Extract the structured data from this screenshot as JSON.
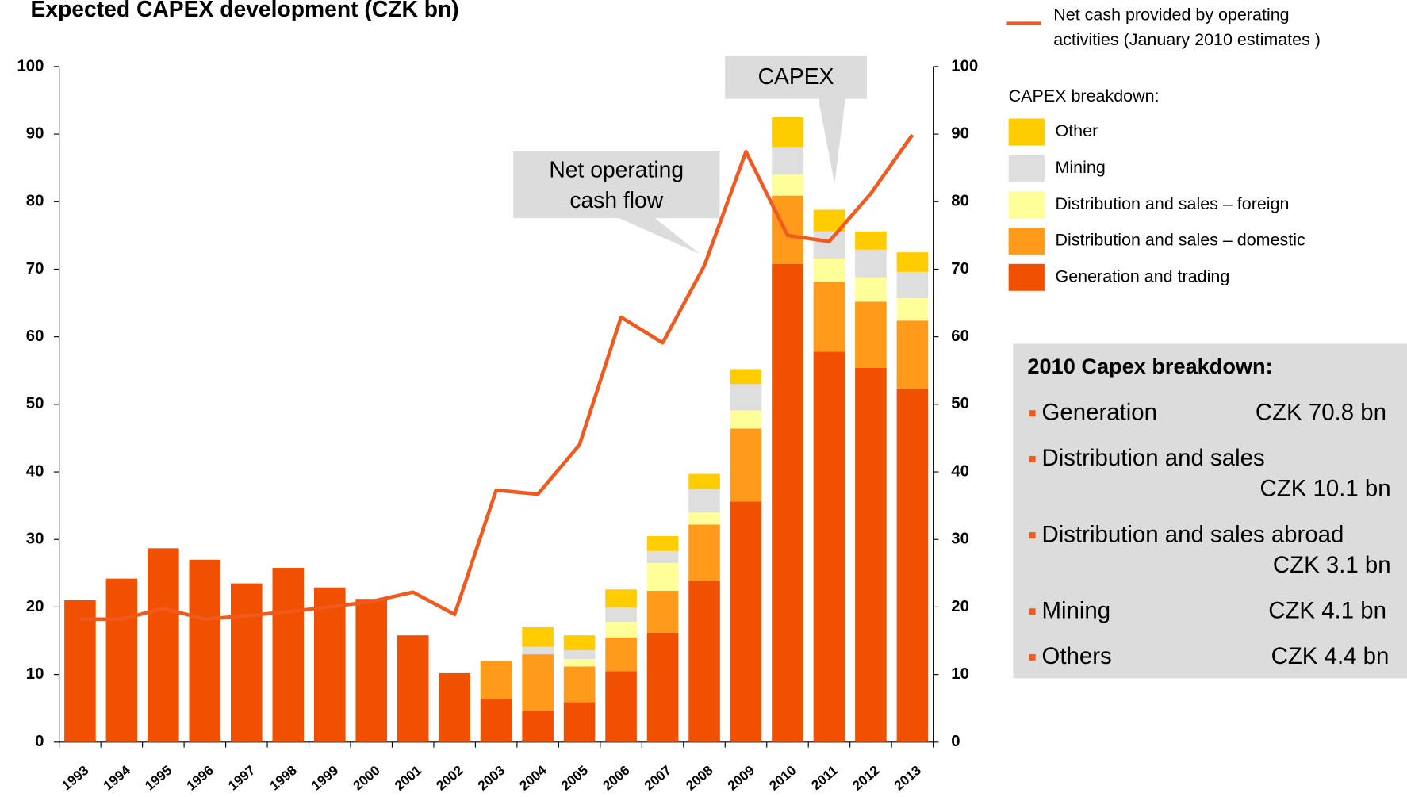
{
  "chart_data": {
    "type": "bar",
    "title": "Expected CAPEX development (CZK bn)",
    "categories": [
      "1993",
      "1994",
      "1995",
      "1996",
      "1997",
      "1998",
      "1999",
      "2000",
      "2001",
      "2002",
      "2003",
      "2004",
      "2005",
      "2006",
      "2007",
      "2008",
      "2009",
      "2010",
      "2011",
      "2012",
      "2013"
    ],
    "stacked": true,
    "series": [
      {
        "name": "Generation and trading",
        "color": "#f05000",
        "values": [
          21,
          24.2,
          28.7,
          27,
          23.5,
          25.8,
          22.9,
          21.2,
          15.8,
          10.2,
          6.4,
          4.7,
          5.9,
          10.5,
          16.2,
          23.9,
          35.6,
          70.8,
          57.8,
          55.4,
          52.3
        ]
      },
      {
        "name": "Distribution and sales  – domestic",
        "color": "#ff9a1a",
        "values": [
          0,
          0,
          0,
          0,
          0,
          0,
          0,
          0,
          0,
          0,
          5.6,
          8.3,
          5.3,
          5,
          6.2,
          8.3,
          10.8,
          10.1,
          10.3,
          9.8,
          10.1
        ]
      },
      {
        "name": "Distribution and sales – foreign",
        "color": "#ffff99",
        "values": [
          0,
          0,
          0,
          0,
          0,
          0,
          0,
          0,
          0,
          0,
          0,
          0,
          1.1,
          2.3,
          4.1,
          1.8,
          2.7,
          3.1,
          3.5,
          3.6,
          3.3
        ]
      },
      {
        "name": "Mining",
        "color": "#dedede",
        "values": [
          0,
          0,
          0,
          0,
          0,
          0,
          0,
          0,
          0,
          0,
          0,
          1.1,
          1.3,
          2.1,
          1.8,
          3.5,
          3.9,
          4.1,
          4,
          4.1,
          3.9
        ]
      },
      {
        "name": "Other",
        "color": "#ffcc00",
        "values": [
          0,
          0,
          0,
          0,
          0,
          0,
          0,
          0,
          0,
          0,
          0,
          2.9,
          2.2,
          2.7,
          2.2,
          2.2,
          2.2,
          4.4,
          3.2,
          2.7,
          2.9
        ]
      },
      {
        "name": "Net cash provided by operating activities (January 2010 estimates )",
        "type": "line",
        "color": "#f05a1e",
        "values": [
          18.2,
          18.2,
          19.8,
          18.2,
          18.7,
          19.3,
          20,
          20.8,
          22.2,
          18.9,
          37.3,
          36.7,
          44,
          62.9,
          59.1,
          70.5,
          87.4,
          75,
          74.1,
          81.2,
          89.9
        ]
      }
    ],
    "legend_title": "CAPEX breakdown:",
    "ylim": [
      0,
      100
    ],
    "yticks": [
      0,
      10,
      20,
      30,
      40,
      50,
      60,
      70,
      80,
      90,
      100
    ],
    "y2lim": [
      0,
      100
    ],
    "y2ticks": [
      0,
      10,
      20,
      30,
      40,
      50,
      60,
      70,
      80,
      90,
      100
    ],
    "annotations": [
      [
        "CAPEX"
      ],
      [
        "Net operating",
        "cash flow"
      ]
    ],
    "side_panel": {
      "title": "2010 Capex breakdown:",
      "items": [
        {
          "label": "Generation",
          "value": "CZK 70.8 bn"
        },
        {
          "label": "Distribution and sales",
          "value": "CZK 10.1 bn"
        },
        {
          "label": "Distribution and sales abroad",
          "value": "CZK 3.1 bn"
        },
        {
          "label": "Mining",
          "value": "CZK 4.1 bn"
        },
        {
          "label": "Others",
          "value": "CZK 4.4 bn"
        }
      ]
    }
  }
}
